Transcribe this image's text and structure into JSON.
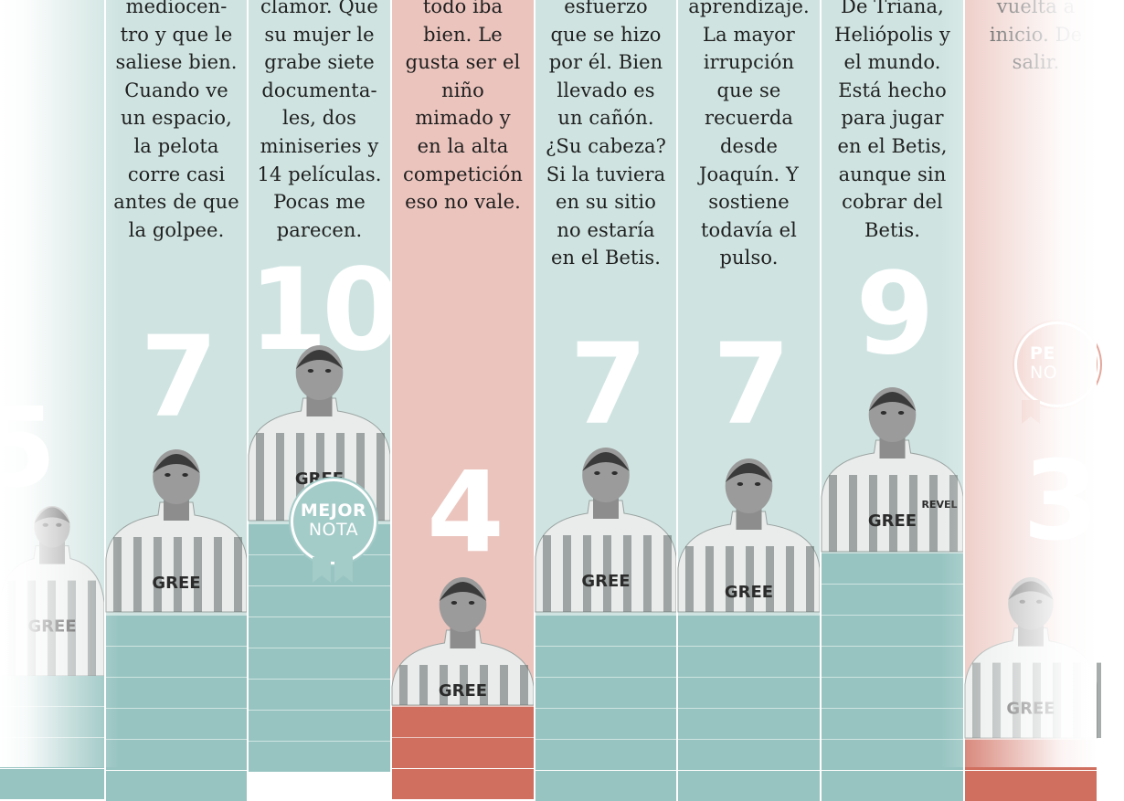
{
  "colors": {
    "green_column": "#cfe4e1",
    "red_column": "#ebc4bd",
    "green_bar": "#97c4c1",
    "red_bar": "#d06e5f",
    "badge": "#a3cbc8"
  },
  "players": [
    {
      "id": "p0",
      "grade": "5",
      "tone": "green",
      "blurb": []
    },
    {
      "id": "p1",
      "grade": "7",
      "tone": "green",
      "blurb": [
        "mediocen-",
        "tro y que le",
        "saliese bien.",
        "Cuando ve",
        "un espacio,",
        "la pelota",
        "corre casi",
        "antes de que",
        "la golpee."
      ]
    },
    {
      "id": "p2",
      "grade": "10",
      "tone": "green",
      "blurb": [
        "clamor. Que",
        "su mujer le",
        "grabe siete",
        "documenta-",
        "les, dos",
        "miniseries y",
        "14 películas.",
        "Pocas me",
        "parecen."
      ]
    },
    {
      "id": "p3",
      "grade": "4",
      "tone": "red",
      "blurb": [
        "todo iba",
        "bien. Le",
        "gusta ser el",
        "niño",
        "mimado y",
        "en la alta",
        "competición",
        "eso no vale."
      ]
    },
    {
      "id": "p4",
      "grade": "7",
      "tone": "green",
      "blurb": [
        "esfuerzo",
        "que se hizo",
        "por él. Bien",
        "llevado es",
        "un cañón.",
        "¿Su cabeza?",
        "Si la tuviera",
        "en su sitio",
        "no estaría",
        "en el Betis."
      ]
    },
    {
      "id": "p5",
      "grade": "7",
      "tone": "green",
      "blurb": [
        "aprendizaje.",
        "La mayor",
        "irrupción",
        "que se",
        "recuerda",
        "desde",
        "Joaquín. Y",
        "sostiene",
        "todavía el",
        "pulso."
      ]
    },
    {
      "id": "p6",
      "grade": "9",
      "tone": "green",
      "blurb": [
        "De Triana,",
        "Heliópolis y",
        "el mundo.",
        "Está hecho",
        "para jugar",
        "en el Betis,",
        "aunque sin",
        "cobrar del",
        "Betis."
      ]
    },
    {
      "id": "p7",
      "grade": "3",
      "tone": "red",
      "blurb": [
        "vuelta a",
        "inicio. De",
        "salir."
      ]
    }
  ],
  "best_badge": {
    "line1": "MEJOR",
    "line2": "NOTA"
  },
  "worst_badge": {
    "line1": "PE",
    "line2": "NO"
  },
  "sponsor": "GREE",
  "kit_sponsor_2": "REVEL"
}
